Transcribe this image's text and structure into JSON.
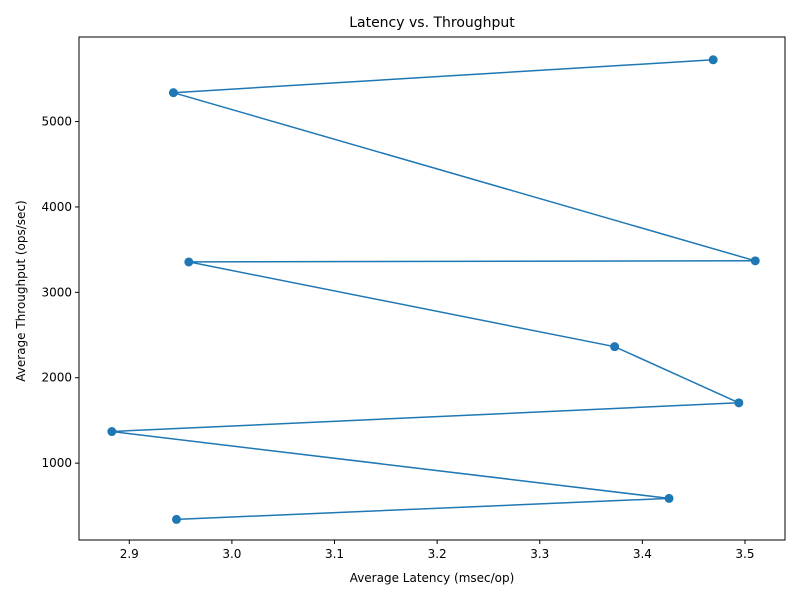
{
  "chart_data": {
    "type": "line",
    "title": "Latency vs. Throughput",
    "xlabel": "Average Latency (msec/op)",
    "ylabel": "Average Throughput (ops/sec)",
    "xlim": [
      2.851,
      3.539
    ],
    "ylim": [
      100,
      5990
    ],
    "x_ticks": [
      2.9,
      3.0,
      3.1,
      3.2,
      3.3,
      3.4,
      3.5
    ],
    "x_tick_labels": [
      "2.9",
      "3.0",
      "3.1",
      "3.2",
      "3.3",
      "3.4",
      "3.5"
    ],
    "y_ticks": [
      1000,
      2000,
      3000,
      4000,
      5000
    ],
    "y_tick_labels": [
      "1000",
      "2000",
      "3000",
      "4000",
      "5000"
    ],
    "grid": false,
    "series": [
      {
        "color": "#1f77b4",
        "marker": "circle",
        "points": [
          {
            "x": 3.469,
            "y": 5723
          },
          {
            "x": 2.943,
            "y": 5338
          },
          {
            "x": 3.51,
            "y": 3369
          },
          {
            "x": 2.958,
            "y": 3356
          },
          {
            "x": 3.373,
            "y": 2364
          },
          {
            "x": 3.494,
            "y": 1706
          },
          {
            "x": 2.883,
            "y": 1370
          },
          {
            "x": 3.426,
            "y": 587
          },
          {
            "x": 2.946,
            "y": 341
          }
        ]
      }
    ]
  }
}
